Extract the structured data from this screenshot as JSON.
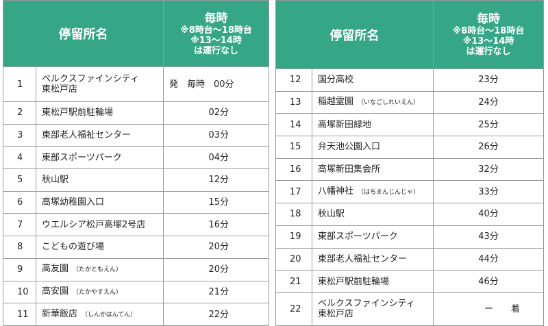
{
  "tables": [
    {
      "header": {
        "name": "停留所名",
        "time": [
          "毎時",
          "※8時台～18時台",
          "※13～14時",
          "は運行なし"
        ]
      },
      "rows": [
        {
          "no": "1",
          "name": [
            "ベルクスファインシティ",
            "東松戸店"
          ],
          "time": "発　毎時　00分"
        },
        {
          "no": "2",
          "name": [
            "東松戸駅前駐輪場"
          ],
          "time": "02分"
        },
        {
          "no": "3",
          "name": [
            "東部老人福祉センター"
          ],
          "time": "03分"
        },
        {
          "no": "4",
          "name": [
            "東部スポーツパーク"
          ],
          "time": "04分"
        },
        {
          "no": "5",
          "name": [
            "秋山駅"
          ],
          "time": "12分"
        },
        {
          "no": "6",
          "name": [
            "高塚幼稚園入口"
          ],
          "time": "15分"
        },
        {
          "no": "7",
          "name": [
            "ウエルシア松戸高塚2号店"
          ],
          "time": "16分"
        },
        {
          "no": "8",
          "name": [
            "こどもの遊び場"
          ],
          "time": "20分"
        },
        {
          "no": "9",
          "name": [
            "高友園"
          ],
          "reading": "（たかともえん）",
          "time": "20分"
        },
        {
          "no": "10",
          "name": [
            "高安園"
          ],
          "reading": "（たかやすえん）",
          "time": "21分"
        },
        {
          "no": "11",
          "name": [
            "新華飯店"
          ],
          "reading": "（しんかはんてん）",
          "time": "22分"
        }
      ]
    },
    {
      "header": {
        "name": "停留所名",
        "time": [
          "毎時",
          "※8時台～18時台",
          "※13～14時",
          "は運行なし"
        ]
      },
      "rows": [
        {
          "no": "12",
          "name": [
            "国分高校"
          ],
          "time": "23分"
        },
        {
          "no": "13",
          "name": [
            "稲越霊園"
          ],
          "reading": "（いなごしれいえん）",
          "time": "24分"
        },
        {
          "no": "14",
          "name": [
            "高塚新田緑地"
          ],
          "time": "25分"
        },
        {
          "no": "15",
          "name": [
            "弁天池公園入口"
          ],
          "time": "26分"
        },
        {
          "no": "16",
          "name": [
            "高塚新田集会所"
          ],
          "time": "32分"
        },
        {
          "no": "17",
          "name": [
            "八幡神社"
          ],
          "reading": "（はちまんじんじゃ）",
          "time": "33分"
        },
        {
          "no": "18",
          "name": [
            "秋山駅"
          ],
          "time": "40分"
        },
        {
          "no": "19",
          "name": [
            "東部スポーツパーク"
          ],
          "time": "43分"
        },
        {
          "no": "20",
          "name": [
            "東部老人福祉センター"
          ],
          "time": "44分"
        },
        {
          "no": "21",
          "name": [
            "東松戸駅前駐輪場"
          ],
          "time": "46分"
        },
        {
          "no": "22",
          "name": [
            "ベルクスファインシティ",
            "東松戸店"
          ],
          "time": "ー　　着"
        }
      ]
    }
  ]
}
